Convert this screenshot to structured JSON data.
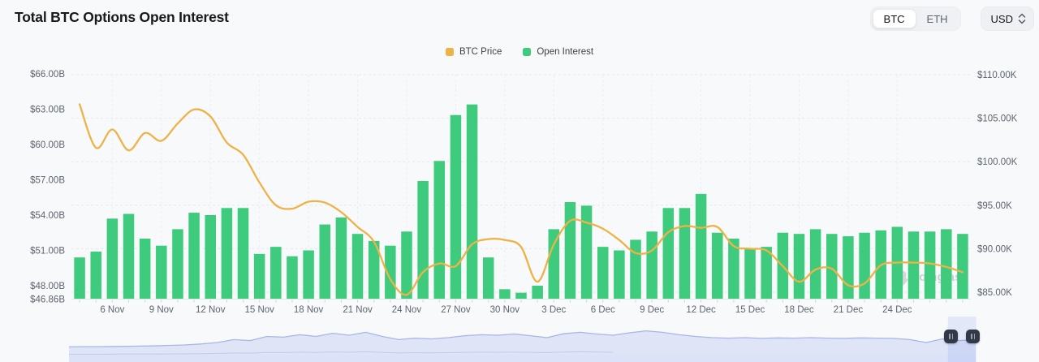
{
  "header": {
    "title": "Total BTC Options Open Interest"
  },
  "controls": {
    "asset_tabs": [
      "BTC",
      "ETH"
    ],
    "selected_asset": "BTC",
    "currency": "USD"
  },
  "legend": [
    {
      "label": "BTC Price",
      "color": "#eeb247"
    },
    {
      "label": "Open Interest",
      "color": "#3ecb7d"
    }
  ],
  "watermark": "coinglass",
  "chart_data": {
    "type": "combo",
    "title": "Total BTC Options Open Interest",
    "categories": [
      "4 Nov",
      "5 Nov",
      "6 Nov",
      "7 Nov",
      "8 Nov",
      "9 Nov",
      "10 Nov",
      "11 Nov",
      "12 Nov",
      "13 Nov",
      "14 Nov",
      "15 Nov",
      "16 Nov",
      "17 Nov",
      "18 Nov",
      "19 Nov",
      "20 Nov",
      "21 Nov",
      "22 Nov",
      "23 Nov",
      "24 Nov",
      "25 Nov",
      "26 Nov",
      "27 Nov",
      "28 Nov",
      "29 Nov",
      "30 Nov",
      "1 Dec",
      "2 Dec",
      "3 Dec",
      "4 Dec",
      "5 Dec",
      "6 Dec",
      "7 Dec",
      "8 Dec",
      "9 Dec",
      "10 Dec",
      "11 Dec",
      "12 Dec",
      "13 Dec",
      "14 Dec",
      "15 Dec",
      "16 Dec",
      "17 Dec",
      "18 Dec",
      "19 Dec",
      "20 Dec",
      "21 Dec",
      "22 Dec",
      "23 Dec",
      "24 Dec",
      "25 Dec",
      "26 Dec",
      "27 Dec",
      "28 Dec"
    ],
    "series": [
      {
        "name": "Open Interest",
        "type": "bar",
        "axis": "left",
        "unit": "USD billions",
        "color": "#3ecb7d",
        "values": [
          50.4,
          50.9,
          53.7,
          54.1,
          52.0,
          51.4,
          52.8,
          54.2,
          54.0,
          54.6,
          54.6,
          50.7,
          51.3,
          50.5,
          51.0,
          53.2,
          53.8,
          52.4,
          51.8,
          51.4,
          52.6,
          56.9,
          58.6,
          62.5,
          63.4,
          50.4,
          47.7,
          47.4,
          48.0,
          52.8,
          55.1,
          54.8,
          51.3,
          51.0,
          51.9,
          52.6,
          54.6,
          54.6,
          55.8,
          52.5,
          52.0,
          51.2,
          51.3,
          52.5,
          52.4,
          52.8,
          52.4,
          52.2,
          52.5,
          52.7,
          53.0,
          52.6,
          52.6,
          52.8,
          52.4
        ]
      },
      {
        "name": "BTC Price",
        "type": "line",
        "axis": "right",
        "unit": "USD thousands",
        "color": "#eeb247",
        "values": [
          106.6,
          101.6,
          103.7,
          101.3,
          103.3,
          102.4,
          104.4,
          106.0,
          105.2,
          102.2,
          100.8,
          97.6,
          95.0,
          94.6,
          95.4,
          95.3,
          94.2,
          92.5,
          90.8,
          86.5,
          84.7,
          87.3,
          88.3,
          88.0,
          90.5,
          91.1,
          91.0,
          90.2,
          86.2,
          90.5,
          93.2,
          93.0,
          92.3,
          91.0,
          89.5,
          89.8,
          91.9,
          92.6,
          92.4,
          92.5,
          90.3,
          90.0,
          89.8,
          88.0,
          86.2,
          87.6,
          87.7,
          85.8,
          86.0,
          88.1,
          88.4,
          88.4,
          88.3,
          87.9,
          87.3
        ]
      }
    ],
    "left_axis": {
      "range": [
        46.86,
        66.0
      ],
      "ticks": [
        {
          "label": "$66.00B",
          "value": 66.0
        },
        {
          "label": "$63.00B",
          "value": 63.0
        },
        {
          "label": "$60.00B",
          "value": 60.0
        },
        {
          "label": "$57.00B",
          "value": 57.0
        },
        {
          "label": "$54.00B",
          "value": 54.0
        },
        {
          "label": "$51.00B",
          "value": 51.0
        },
        {
          "label": "$48.00B",
          "value": 48.0
        },
        {
          "label": "$46.86B",
          "value": 46.86
        }
      ]
    },
    "right_axis": {
      "range": [
        85.0,
        110.0
      ],
      "ticks": [
        {
          "label": "$110.00K",
          "value": 110.0
        },
        {
          "label": "$105.00K",
          "value": 105.0
        },
        {
          "label": "$100.00K",
          "value": 100.0
        },
        {
          "label": "$95.00K",
          "value": 95.0
        },
        {
          "label": "$90.00K",
          "value": 90.0
        },
        {
          "label": "$85.00K",
          "value": 85.0
        }
      ]
    },
    "x_ticks": [
      {
        "label": "6 Nov",
        "index": 2
      },
      {
        "label": "9 Nov",
        "index": 5
      },
      {
        "label": "12 Nov",
        "index": 8
      },
      {
        "label": "15 Nov",
        "index": 11
      },
      {
        "label": "18 Nov",
        "index": 14
      },
      {
        "label": "21 Nov",
        "index": 17
      },
      {
        "label": "24 Nov",
        "index": 20
      },
      {
        "label": "27 Nov",
        "index": 23
      },
      {
        "label": "30 Nov",
        "index": 26
      },
      {
        "label": "3 Dec",
        "index": 29
      },
      {
        "label": "6 Dec",
        "index": 32
      },
      {
        "label": "9 Dec",
        "index": 35
      },
      {
        "label": "12 Dec",
        "index": 38
      },
      {
        "label": "15 Dec",
        "index": 41
      },
      {
        "label": "18 Dec",
        "index": 44
      },
      {
        "label": "21 Dec",
        "index": 47
      },
      {
        "label": "24 Dec",
        "index": 50
      }
    ],
    "grid": true,
    "legend_position": "top-center"
  },
  "navigator": {
    "points": [
      0.12,
      0.13,
      0.13,
      0.14,
      0.15,
      0.16,
      0.18,
      0.2,
      0.24,
      0.3,
      0.42,
      0.38,
      0.55,
      0.52,
      0.62,
      0.55,
      0.68,
      0.6,
      0.72,
      0.55,
      0.42,
      0.48,
      0.45,
      0.5,
      0.58,
      0.62,
      0.6,
      0.65,
      0.58,
      0.5,
      0.66,
      0.72,
      0.65,
      0.6,
      0.7,
      0.78,
      0.72,
      0.62,
      0.55,
      0.5,
      0.48,
      0.5,
      0.47,
      0.49,
      0.48,
      0.5,
      0.48,
      0.47,
      0.49,
      0.48,
      0.47,
      0.42,
      0.3,
      0.45,
      0.38,
      0.42
    ],
    "selection": {
      "from": 0.973,
      "to": 0.997
    }
  }
}
